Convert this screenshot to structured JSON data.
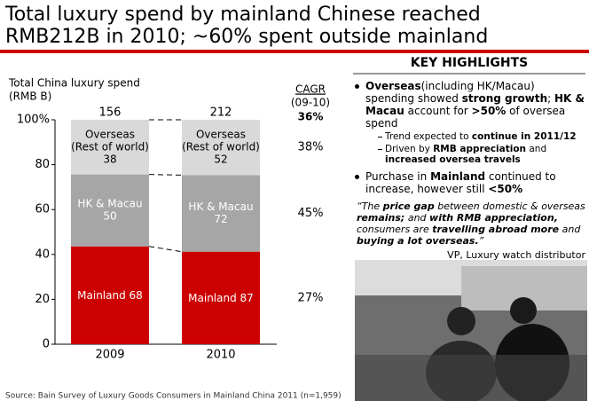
{
  "chart_data": {
    "type": "stacked_percent_bar",
    "title": [
      "Total luxury spend by mainland Chinese reached",
      "RMB212B in 2010; ~60% spent outside mainland"
    ],
    "y_label": [
      "Total China luxury spend",
      "(RMB B)"
    ],
    "categories": [
      "2009",
      "2010"
    ],
    "totals": [
      156,
      212
    ],
    "series": [
      {
        "name": "Mainland",
        "color": "#cc0000",
        "text_color": "#ffffff",
        "values": [
          68,
          87
        ]
      },
      {
        "name": "HK & Macau",
        "color": "#a6a6a6",
        "text_color": "#ffffff",
        "values": [
          50,
          72
        ]
      },
      {
        "name": "Overseas",
        "sublabel": "(Rest of world)",
        "color": "#d9d9d9",
        "text_color": "#000000",
        "values": [
          38,
          52
        ]
      }
    ],
    "ylim": [
      0,
      100
    ],
    "yticks": [
      0,
      20,
      40,
      60,
      80,
      {
        "value": 100,
        "label": "100%"
      }
    ],
    "cagr": {
      "title": "CAGR",
      "subtitle": "(09-10)",
      "total": {
        "value": 36,
        "label": "36%"
      },
      "values": [
        27,
        45,
        38
      ],
      "value_labels": [
        "27%",
        "45%",
        "38%"
      ]
    },
    "source": "Source: Bain Survey of Luxury Goods Consumers in Mainland China 2011 (n=1,959)"
  },
  "highlights": {
    "title": "KEY HIGHLIGHTS",
    "bullets": [
      {
        "runs": [
          {
            "text": "Overseas",
            "bold": true
          },
          {
            "text": "(including HK/Macau) spending showed "
          },
          {
            "text": "strong growth",
            "bold": true
          },
          {
            "text": "; "
          },
          {
            "text": "HK & Macau",
            "bold": true
          },
          {
            "text": " account for "
          },
          {
            "text": ">50%",
            "bold": true
          },
          {
            "text": " of oversea spend"
          }
        ],
        "sub": [
          [
            {
              "text": "Trend expected to "
            },
            {
              "text": "continue in 2011/12",
              "bold": true
            }
          ],
          [
            {
              "text": "Driven by "
            },
            {
              "text": "RMB appreciation",
              "bold": true
            },
            {
              "text": " and "
            },
            {
              "text": "increased oversea travels",
              "bold": true
            }
          ]
        ]
      },
      {
        "runs": [
          {
            "text": "Purchase in "
          },
          {
            "text": "Mainland",
            "bold": true
          },
          {
            "text": " continued to increase, however still "
          },
          {
            "text": "<50%",
            "bold": true
          }
        ],
        "sub": []
      }
    ],
    "quote": [
      {
        "text": "“The "
      },
      {
        "text": "price gap",
        "bold": true
      },
      {
        "text": " between domestic & overseas "
      },
      {
        "text": "remains;",
        "bold": true
      },
      {
        "text": " and "
      },
      {
        "text": "with RMB appreciation,",
        "bold": true
      },
      {
        "text": " consumers are "
      },
      {
        "text": "travelling abroad more",
        "bold": true
      },
      {
        "text": " and "
      },
      {
        "text": "buying a lot overseas.",
        "bold": true
      },
      {
        "text": "”"
      }
    ],
    "attribution": "VP, Luxury watch distributor"
  }
}
